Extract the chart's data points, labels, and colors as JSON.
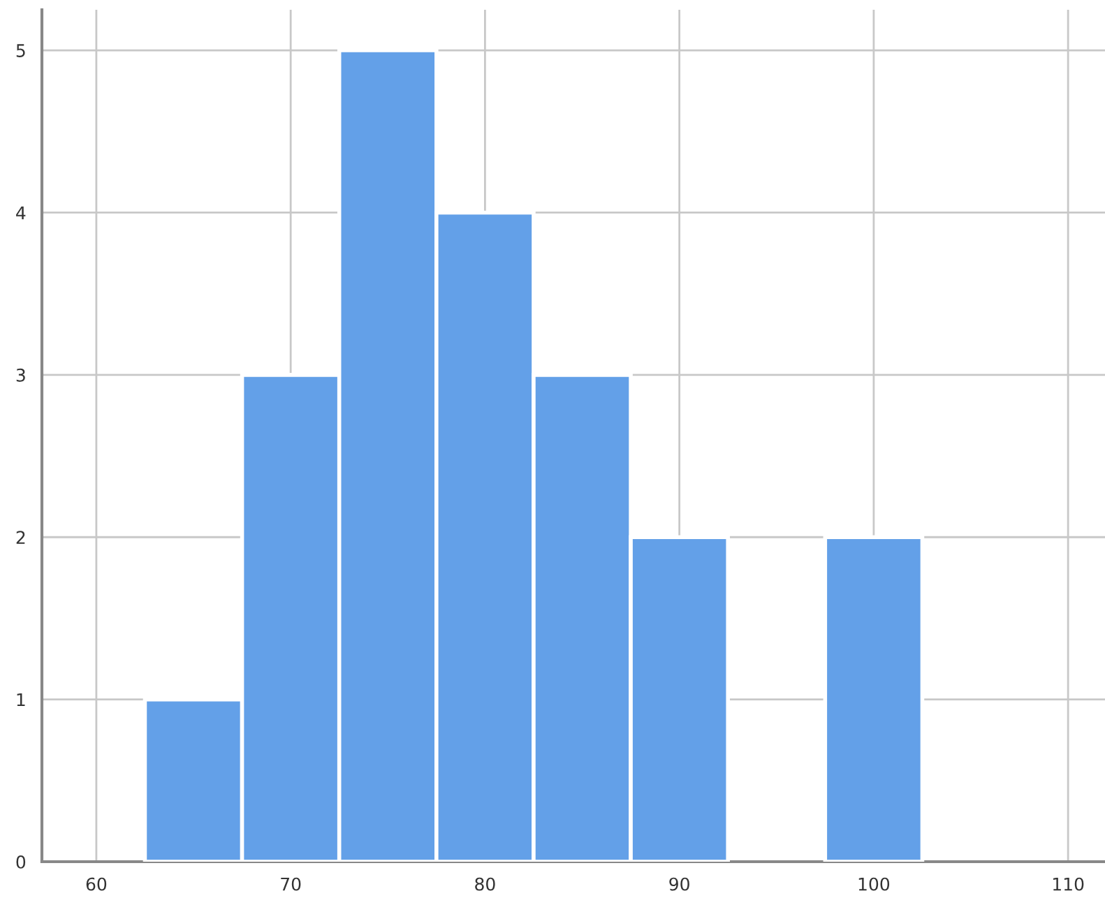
{
  "chart_data": {
    "type": "histogram",
    "bins": [
      62.5,
      67.5,
      72.5,
      77.5,
      82.5,
      87.5,
      92.5,
      97.5,
      102.5
    ],
    "values": [
      1,
      3,
      5,
      4,
      3,
      2,
      0,
      2
    ],
    "color": "#63a0e8",
    "xlim": [
      57.2,
      111.9
    ],
    "xticks": [
      60,
      70,
      80,
      90,
      100,
      110
    ],
    "ylim": [
      0,
      5.25
    ],
    "yticks": [
      0,
      1,
      2,
      3,
      4,
      5
    ],
    "grid": true
  }
}
